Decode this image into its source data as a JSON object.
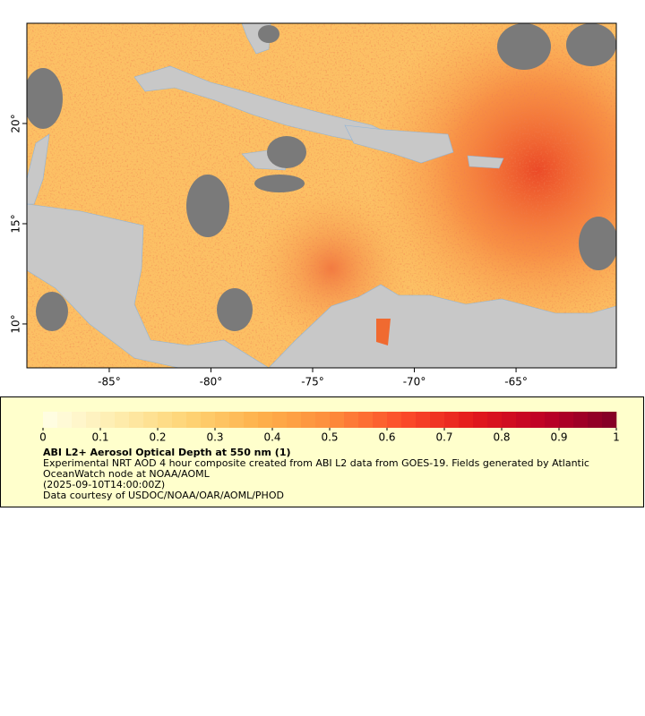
{
  "map": {
    "xlim": [
      -89.05,
      -60.07
    ],
    "ylim": [
      7.81,
      25
    ],
    "xticks": [
      {
        "value": -85,
        "label": "-85°"
      },
      {
        "value": -80,
        "label": "-80°"
      },
      {
        "value": -75,
        "label": "-75°"
      },
      {
        "value": -70,
        "label": "-70°"
      },
      {
        "value": -65,
        "label": "-65°"
      }
    ],
    "yticks": [
      {
        "value": 10,
        "label": "10°"
      },
      {
        "value": 15,
        "label": "15°"
      },
      {
        "value": 20,
        "label": "20°"
      }
    ]
  },
  "colorbar": {
    "range": [
      0,
      1
    ],
    "ticks": [
      0,
      0.1,
      0.2,
      0.3,
      0.4,
      0.5,
      0.6,
      0.7,
      0.8,
      0.9,
      1
    ],
    "colors": [
      "#ffffe6",
      "#feedb0",
      "#fed476",
      "#feb24c",
      "#fd8d3c",
      "#fc4e2a",
      "#e31a1c",
      "#bd0026",
      "#800026"
    ]
  },
  "legend": {
    "title": "ABI L2+ Aerosol Optical Depth at 550 nm (1)",
    "description": "Experimental NRT AOD 4 hour composite created from ABI L2 data from GOES-19. Fields generated by Atlantic OceanWatch node at NOAA/AOML",
    "time": "(2025-09-10T14:00:00Z)",
    "credit": "Data courtesy of USDOC/NOAA/OAR/AOML/PHOD"
  }
}
